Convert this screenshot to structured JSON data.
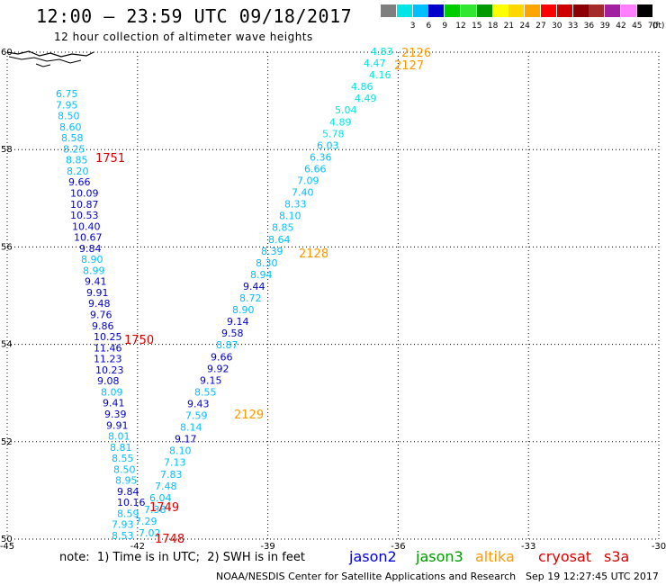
{
  "header": {
    "title": "12:00 – 23:59 UTC 09/18/2017",
    "subtitle": "12 hour collection of altimeter wave heights"
  },
  "legend_colorbar": {
    "unit_label": "(ft)",
    "bins": [
      {
        "label": "",
        "color": "#7f7f7f"
      },
      {
        "label": "3",
        "color": "#00e5e5"
      },
      {
        "label": "6",
        "color": "#00bfff"
      },
      {
        "label": "9",
        "color": "#0000cd"
      },
      {
        "label": "12",
        "color": "#00cd00"
      },
      {
        "label": "15",
        "color": "#32e632"
      },
      {
        "label": "18",
        "color": "#009900"
      },
      {
        "label": "21",
        "color": "#ffff00"
      },
      {
        "label": "24",
        "color": "#ffd700"
      },
      {
        "label": "27",
        "color": "#ffa500"
      },
      {
        "label": "30",
        "color": "#ff0000"
      },
      {
        "label": "33",
        "color": "#cd0000"
      },
      {
        "label": "36",
        "color": "#8b0000"
      },
      {
        "label": "39",
        "color": "#a52a2a"
      },
      {
        "label": "42",
        "color": "#a020a0"
      },
      {
        "label": "45",
        "color": "#ff80ff"
      },
      {
        "label": "70",
        "color": "#000000"
      }
    ]
  },
  "map": {
    "lat_labels": [
      "60",
      "58",
      "56",
      "54",
      "52",
      "50"
    ],
    "lon_labels": [
      "-45",
      "-42",
      "-39",
      "-36",
      "-33",
      "-30"
    ],
    "lat_values": [
      60,
      58,
      56,
      54,
      52,
      50
    ],
    "lon_values": [
      -45,
      -42,
      -39,
      -36,
      -33,
      -30
    ]
  },
  "tracks": {
    "cryosat_track": [
      {
        "v": "6.75",
        "c": "#00bfff"
      },
      {
        "v": "7.95",
        "c": "#00bfff"
      },
      {
        "v": "8.50",
        "c": "#00bfff"
      },
      {
        "v": "8.60",
        "c": "#00bfff"
      },
      {
        "v": "8.58",
        "c": "#00bfff"
      },
      {
        "v": "8.25",
        "c": "#00bfff"
      },
      {
        "v": "8.85",
        "c": "#00bfff"
      },
      {
        "v": "8.20",
        "c": "#00bfff"
      },
      {
        "v": "9.66",
        "c": "#0000cd"
      },
      {
        "v": "10.09",
        "c": "#0000cd"
      },
      {
        "v": "10.87",
        "c": "#0000cd"
      },
      {
        "v": "10.53",
        "c": "#0000cd"
      },
      {
        "v": "10.40",
        "c": "#0000cd"
      },
      {
        "v": "10.67",
        "c": "#0000cd"
      },
      {
        "v": "9.84",
        "c": "#0000cd"
      },
      {
        "v": "8.90",
        "c": "#00bfff"
      },
      {
        "v": "8.99",
        "c": "#00bfff"
      },
      {
        "v": "9.41",
        "c": "#0000cd"
      },
      {
        "v": "9.91",
        "c": "#0000cd"
      },
      {
        "v": "9.48",
        "c": "#0000cd"
      },
      {
        "v": "9.76",
        "c": "#0000cd"
      },
      {
        "v": "9.86",
        "c": "#0000cd"
      },
      {
        "v": "10.25",
        "c": "#0000cd"
      },
      {
        "v": "11.46",
        "c": "#0000cd"
      },
      {
        "v": "11.23",
        "c": "#0000cd"
      },
      {
        "v": "10.23",
        "c": "#0000cd"
      },
      {
        "v": "9.08",
        "c": "#0000cd"
      },
      {
        "v": "8.09",
        "c": "#00bfff"
      },
      {
        "v": "9.41",
        "c": "#0000cd"
      },
      {
        "v": "9.39",
        "c": "#0000cd"
      },
      {
        "v": "9.91",
        "c": "#0000cd"
      },
      {
        "v": "8.01",
        "c": "#00bfff"
      },
      {
        "v": "8.81",
        "c": "#00bfff"
      },
      {
        "v": "8.55",
        "c": "#00bfff"
      },
      {
        "v": "8.50",
        "c": "#00bfff"
      },
      {
        "v": "8.95",
        "c": "#00bfff"
      },
      {
        "v": "9.84",
        "c": "#0000cd"
      },
      {
        "v": "10.16",
        "c": "#0000cd"
      },
      {
        "v": "8.59",
        "c": "#00bfff"
      },
      {
        "v": "7.93",
        "c": "#00bfff"
      },
      {
        "v": "8.53",
        "c": "#00bfff"
      }
    ],
    "altika_track": [
      {
        "v": "4.83",
        "c": "#00e5e5"
      },
      {
        "v": "4.47",
        "c": "#00e5e5"
      },
      {
        "v": "4.16",
        "c": "#00e5e5"
      },
      {
        "v": "4.86",
        "c": "#00e5e5"
      },
      {
        "v": "4.49",
        "c": "#00e5e5"
      },
      {
        "v": "5.04",
        "c": "#00e5e5"
      },
      {
        "v": "4.89",
        "c": "#00e5e5"
      },
      {
        "v": "5.78",
        "c": "#00e5e5"
      },
      {
        "v": "6.03",
        "c": "#00bfff"
      },
      {
        "v": "6.36",
        "c": "#00bfff"
      },
      {
        "v": "6.66",
        "c": "#00bfff"
      },
      {
        "v": "7.09",
        "c": "#00bfff"
      },
      {
        "v": "7.40",
        "c": "#00bfff"
      },
      {
        "v": "8.33",
        "c": "#00bfff"
      },
      {
        "v": "8.10",
        "c": "#00bfff"
      },
      {
        "v": "8.85",
        "c": "#00bfff"
      },
      {
        "v": "8.64",
        "c": "#00bfff"
      },
      {
        "v": "8.39",
        "c": "#00bfff"
      },
      {
        "v": "8.30",
        "c": "#00bfff"
      },
      {
        "v": "8.94",
        "c": "#00bfff"
      },
      {
        "v": "9.44",
        "c": "#0000cd"
      },
      {
        "v": "8.72",
        "c": "#00bfff"
      },
      {
        "v": "8.90",
        "c": "#00bfff"
      },
      {
        "v": "9.14",
        "c": "#0000cd"
      },
      {
        "v": "9.58",
        "c": "#0000cd"
      },
      {
        "v": "8.87",
        "c": "#00bfff"
      },
      {
        "v": "9.66",
        "c": "#0000cd"
      },
      {
        "v": "9.92",
        "c": "#0000cd"
      },
      {
        "v": "9.15",
        "c": "#0000cd"
      },
      {
        "v": "8.55",
        "c": "#00bfff"
      },
      {
        "v": "9.43",
        "c": "#0000cd"
      },
      {
        "v": "7.59",
        "c": "#00bfff"
      },
      {
        "v": "8.14",
        "c": "#00bfff"
      },
      {
        "v": "9.17",
        "c": "#0000cd"
      },
      {
        "v": "8.10",
        "c": "#00bfff"
      },
      {
        "v": "7.13",
        "c": "#00bfff"
      },
      {
        "v": "7.83",
        "c": "#00bfff"
      },
      {
        "v": "7.48",
        "c": "#00bfff"
      },
      {
        "v": "6.04",
        "c": "#00bfff"
      },
      {
        "v": "7.38",
        "c": "#00bfff"
      },
      {
        "v": "7.29",
        "c": "#00bfff"
      },
      {
        "v": "7.02",
        "c": "#00bfff"
      }
    ],
    "time_labels": [
      {
        "t": "2126",
        "sat": "altika",
        "c": "#ff9900"
      },
      {
        "t": "2127",
        "sat": "altika",
        "c": "#ff9900"
      },
      {
        "t": "2128",
        "sat": "altika",
        "c": "#ff9900"
      },
      {
        "t": "2129",
        "sat": "altika",
        "c": "#ff9900"
      },
      {
        "t": "1751",
        "sat": "cryosat",
        "c": "#dd0000"
      },
      {
        "t": "1750",
        "sat": "cryosat",
        "c": "#dd0000"
      },
      {
        "t": "1749",
        "sat": "cryosat",
        "c": "#dd0000"
      },
      {
        "t": "1748",
        "sat": "cryosat",
        "c": "#dd0000"
      }
    ]
  },
  "footer": {
    "note": "note:  1) Time is in UTC;  2) SWH is in feet",
    "satellites": [
      {
        "name": "jason2",
        "color": "#0000dd"
      },
      {
        "name": "jason3",
        "color": "#009900"
      },
      {
        "name": "altika",
        "color": "#ff9900"
      },
      {
        "name": "cryosat",
        "color": "#dd0000"
      },
      {
        "name": "s3a",
        "color": "#dd0000"
      }
    ],
    "credit": "NOAA/NESDIS Center for Satellite Applications and Research",
    "timestamp": "Sep 19 12:27:45 UTC 2017"
  }
}
